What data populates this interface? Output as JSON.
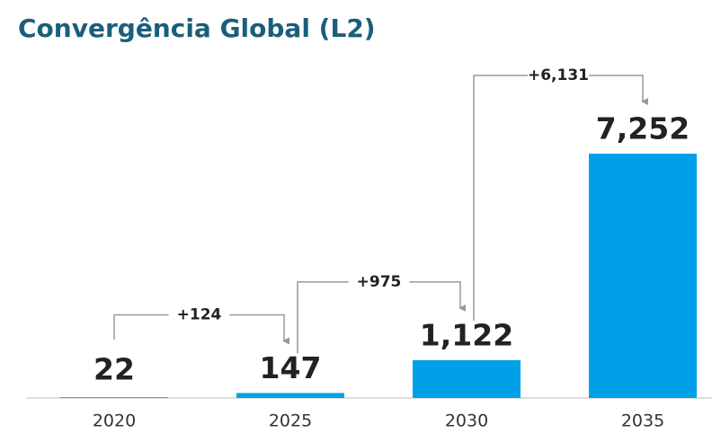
{
  "chart_data": {
    "type": "bar",
    "title": "Convergência Global (L2)",
    "categories": [
      "2020",
      "2025",
      "2030",
      "2035"
    ],
    "values": [
      22,
      147,
      1122,
      7252
    ],
    "value_labels": [
      "22",
      "147",
      "1,122",
      "7,252"
    ],
    "annotations": [
      "+124",
      "+975",
      "+6,131"
    ],
    "color": "#00a0e9",
    "ylim": [
      0,
      8000
    ]
  }
}
